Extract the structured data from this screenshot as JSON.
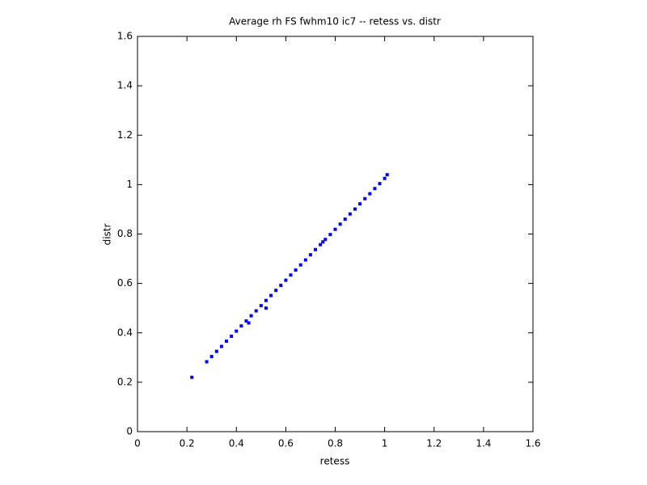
{
  "chart_data": {
    "type": "scatter",
    "title": "Average rh FS fwhm10 ic7 -- retess vs. distr",
    "x_label": "retess",
    "y_label": "distr",
    "color": "#0000ff",
    "xlim": [
      0,
      1.6
    ],
    "ylim": [
      0,
      1.6
    ],
    "xticks": [
      0,
      0.2,
      0.4,
      0.6,
      0.8,
      1,
      1.2,
      1.4,
      1.6
    ],
    "yticks": [
      0,
      0.2,
      0.4,
      0.6,
      0.8,
      1,
      1.2,
      1.4,
      1.6
    ],
    "x": [
      0.22,
      0.28,
      0.3,
      0.32,
      0.34,
      0.36,
      0.38,
      0.4,
      0.42,
      0.44,
      0.45,
      0.46,
      0.48,
      0.5,
      0.52,
      0.52,
      0.54,
      0.56,
      0.58,
      0.6,
      0.62,
      0.64,
      0.66,
      0.68,
      0.7,
      0.72,
      0.74,
      0.75,
      0.76,
      0.78,
      0.8,
      0.82,
      0.84,
      0.86,
      0.88,
      0.9,
      0.92,
      0.94,
      0.96,
      0.98,
      1.0,
      1.01
    ],
    "y": [
      0.22,
      0.283,
      0.304,
      0.325,
      0.345,
      0.366,
      0.386,
      0.407,
      0.428,
      0.448,
      0.44,
      0.469,
      0.489,
      0.51,
      0.531,
      0.5,
      0.551,
      0.572,
      0.592,
      0.613,
      0.634,
      0.654,
      0.675,
      0.695,
      0.716,
      0.737,
      0.757,
      0.768,
      0.778,
      0.798,
      0.819,
      0.84,
      0.86,
      0.881,
      0.901,
      0.922,
      0.943,
      0.963,
      0.984,
      1.004,
      1.025,
      1.04
    ]
  }
}
